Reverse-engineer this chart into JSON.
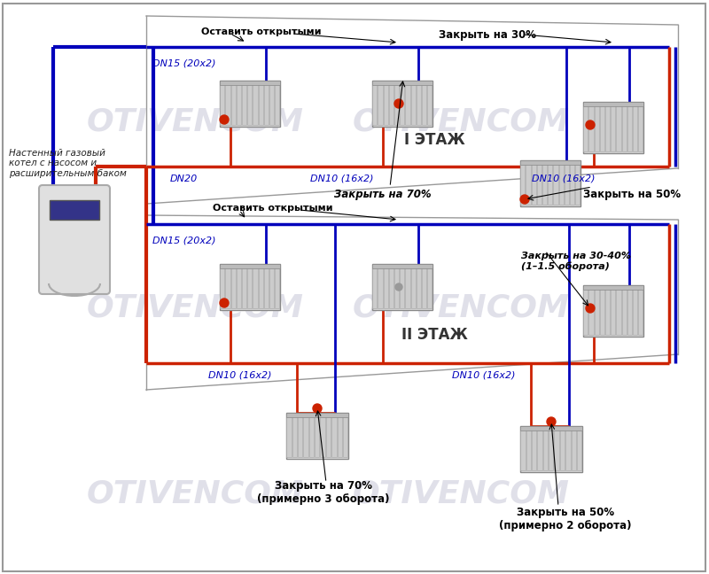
{
  "bg_color": "#ffffff",
  "red_pipe": "#cc2200",
  "blue_pipe": "#0000bb",
  "text_color_blue": "#0000bb",
  "watermark_color": "#c8c8d8",
  "watermark_text": "OTIVENCOM",
  "boiler_label": "Настенный газовый\nкотел с насосом и\nрасширительным баком",
  "floor2_label": "II ЭТАЖ",
  "floor1_label": "I ЭТАЖ",
  "labels": {
    "top_left_valve": "Закрыть на 70%\n(примерно 3 оборота)",
    "top_right_valve": "Закрыть на 50%\n(примерно 2 оборота)",
    "floor2_dn10_left": "DN10 (16х2)",
    "floor2_dn10_right": "DN10 (16х2)",
    "floor2_dn15": "DN15 (20х2)",
    "floor2_open": "Оставить открытыми",
    "floor2_valve_right": "Закрыть на 30-40%\n(1–1.5 оборота)",
    "floor1_dn10_left": "DN10 (16х2)",
    "floor1_dn10_right": "DN10 (16х2)",
    "floor1_dn20": "DN20",
    "floor1_dn15": "DN15 (20х2)",
    "floor1_open": "Оставить открытыми",
    "floor1_valve_top": "Закрыть на 70%",
    "floor1_valve_right": "Закрыть на 50%",
    "floor1_valve_bottom": "Закрыть на 30%"
  }
}
